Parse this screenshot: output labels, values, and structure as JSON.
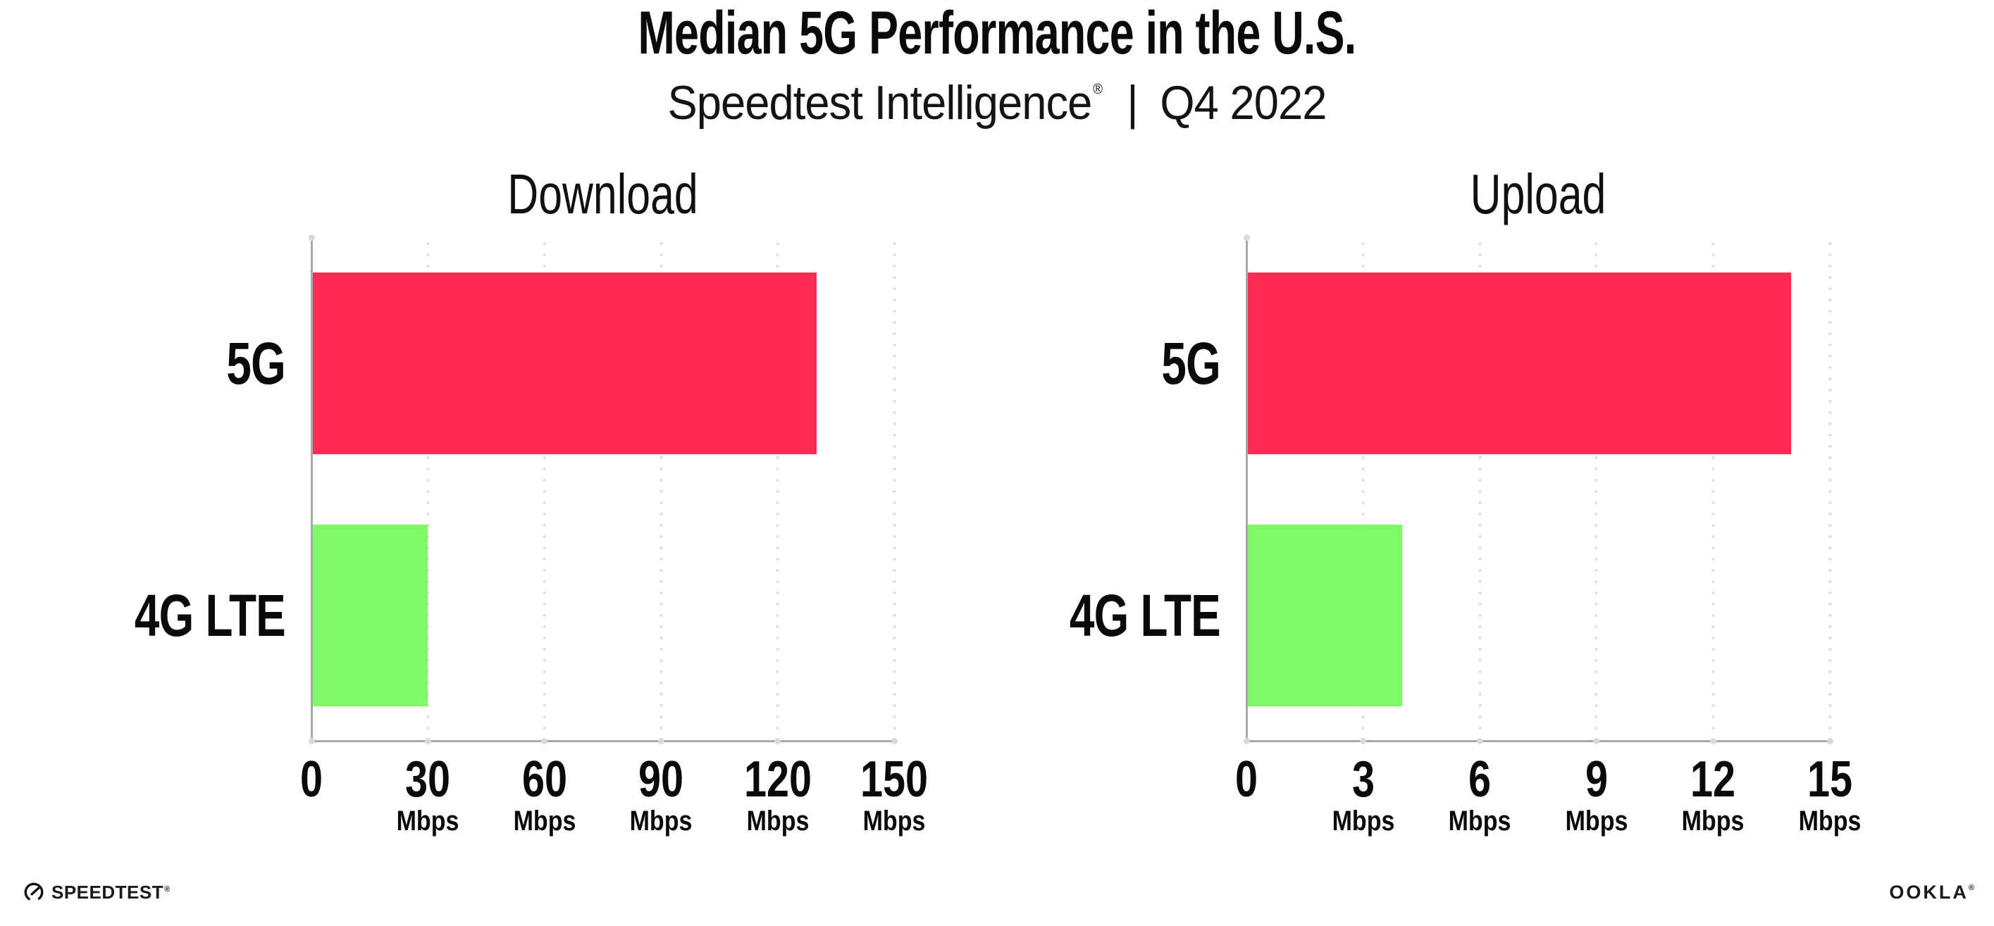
{
  "header": {
    "title": "Median 5G Performance in the U.S.",
    "subtitle_brand": "Speedtest Intelligence",
    "subtitle_reg": "®",
    "subtitle_separator": "|",
    "subtitle_period": "Q4 2022"
  },
  "chart_data": [
    {
      "type": "bar",
      "orientation": "horizontal",
      "title": "Download",
      "categories": [
        "5G",
        "4G LTE"
      ],
      "values": [
        130,
        30
      ],
      "unit": "Mbps",
      "xlim": [
        0,
        150
      ],
      "xticks": [
        0,
        30,
        60,
        90,
        120,
        150
      ],
      "tick_unit_label": "Mbps",
      "series_colors": {
        "5G": "#FF2D55",
        "4G LTE": "#7FFA66"
      },
      "grid": "dotted-vertical-gridlines",
      "legend": "none"
    },
    {
      "type": "bar",
      "orientation": "horizontal",
      "title": "Upload",
      "categories": [
        "5G",
        "4G LTE"
      ],
      "values": [
        14,
        4
      ],
      "unit": "Mbps",
      "xlim": [
        0,
        15
      ],
      "xticks": [
        0,
        3,
        6,
        9,
        12,
        15
      ],
      "tick_unit_label": "Mbps",
      "series_colors": {
        "5G": "#FF2D55",
        "4G LTE": "#7FFA66"
      },
      "grid": "dotted-vertical-gridlines",
      "legend": "none"
    }
  ],
  "footer": {
    "speedtest_label": "SPEEDTEST",
    "speedtest_mark": "®",
    "ookla_label": "OOKLA",
    "ookla_mark": "®"
  },
  "colors": {
    "bar_5g": "#FF2D55",
    "bar_4g_lte": "#7FFA66",
    "axis": "#A8A8A8",
    "gridline_dot": "#DCDCE6",
    "text": "#0B0B0B",
    "background": "#FFFFFF"
  }
}
